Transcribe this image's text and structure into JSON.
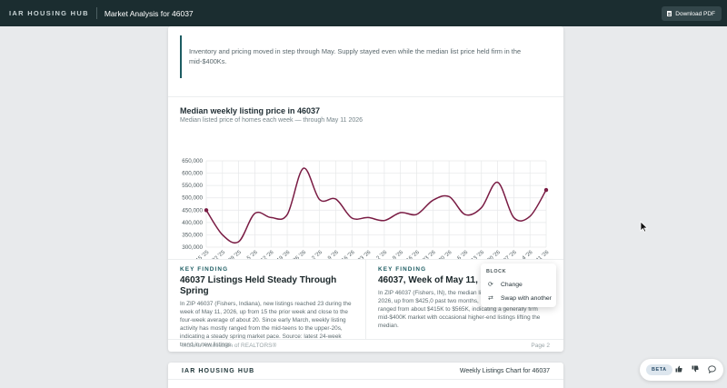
{
  "header": {
    "brand": "IAR HOUSING HUB",
    "title": "Market Analysis for 46037",
    "download_label": "Download PDF",
    "download_icon": "document-icon"
  },
  "page1": {
    "quote": "Inventory and pricing moved in step through May. Supply stayed even while the median list price held firm in the mid-$400Ks.",
    "chart_title": "Median weekly listing price in 46037",
    "chart_subtitle": "Median listed price of homes each week — through May 11 2026",
    "findings": [
      {
        "label": "KEY FINDING",
        "headline": "46037 Listings Held Steady Through Spring",
        "body": "In ZIP 46037 (Fishers, Indiana), new listings reached 23 during the week of May 11, 2026, up from 15 the prior week and close to the four-week average of about 20. Since early March, weekly listing activity has mostly ranged from the mid-teens to the upper-20s, indicating a steady spring market pace. Source: latest 24-week trend in new listings."
      },
      {
        "label": "KEY FINDING",
        "headline": "46037, Week of May 11, 20 Hold Firm",
        "body": "In ZIP 46037 (Fishers, IN), the median listi the week of May 11, 2026, up from $425,0 past two months, median listing prices have ranged from about $415K to $565K, indicating a generally firm mid-$400K market with occasional higher-end listings lifting the median."
      }
    ],
    "footer_left": "Indiana Association of REALTORS®",
    "footer_right": "Page 2"
  },
  "page2": {
    "brand": "IAR HOUSING HUB",
    "title": "Weekly Listings Chart for 46037"
  },
  "popover": {
    "heading": "BLOCK",
    "items": [
      {
        "label": "Change",
        "icon": "refresh-icon"
      },
      {
        "label": "Swap with another",
        "icon": "swap-icon"
      }
    ]
  },
  "feedback": {
    "beta_label": "BETA",
    "icons": [
      "thumbs-up-icon",
      "thumbs-down-icon",
      "comment-icon"
    ]
  },
  "colors": {
    "header_bg": "#1b2d30",
    "accent": "#1c5c62",
    "series": "#7a1c44"
  },
  "chart_data": {
    "type": "line",
    "title": "Median weekly listing price in 46037",
    "subtitle": "Median listed price of homes each week — through May 11 2026",
    "categories": [
      "Dec 15 '25",
      "Dec 22 '25",
      "Dec 29 '25",
      "Jan 5 '26",
      "Jan 12 '26",
      "Jan 19 '26",
      "Jan 26 '26",
      "Feb 2 '26",
      "Feb 9 '26",
      "Feb 16 '26",
      "Feb 23 '26",
      "Mar 2 '26",
      "Mar 9 '26",
      "Mar 16 '26",
      "Mar 23 '26",
      "Mar 30 '26",
      "Apr 6 '26",
      "Apr 13 '26",
      "Apr 20 '26",
      "Apr 27 '26",
      "May 4 '26",
      "May 11 '26"
    ],
    "y_ticks": [
      "650,000",
      "600,000",
      "550,000",
      "500,000",
      "450,000",
      "400,000",
      "350,000",
      "300,000"
    ],
    "series": [
      {
        "values": [
          450000,
          350000,
          322000,
          437000,
          420000,
          432000,
          620000,
          493000,
          495000,
          418000,
          420000,
          408000,
          440000,
          433000,
          490000,
          505000,
          432000,
          460000,
          563000,
          420000,
          425000,
          532000
        ]
      }
    ],
    "ylim": [
      300000,
      650000
    ],
    "grid": true,
    "legend": "none"
  }
}
